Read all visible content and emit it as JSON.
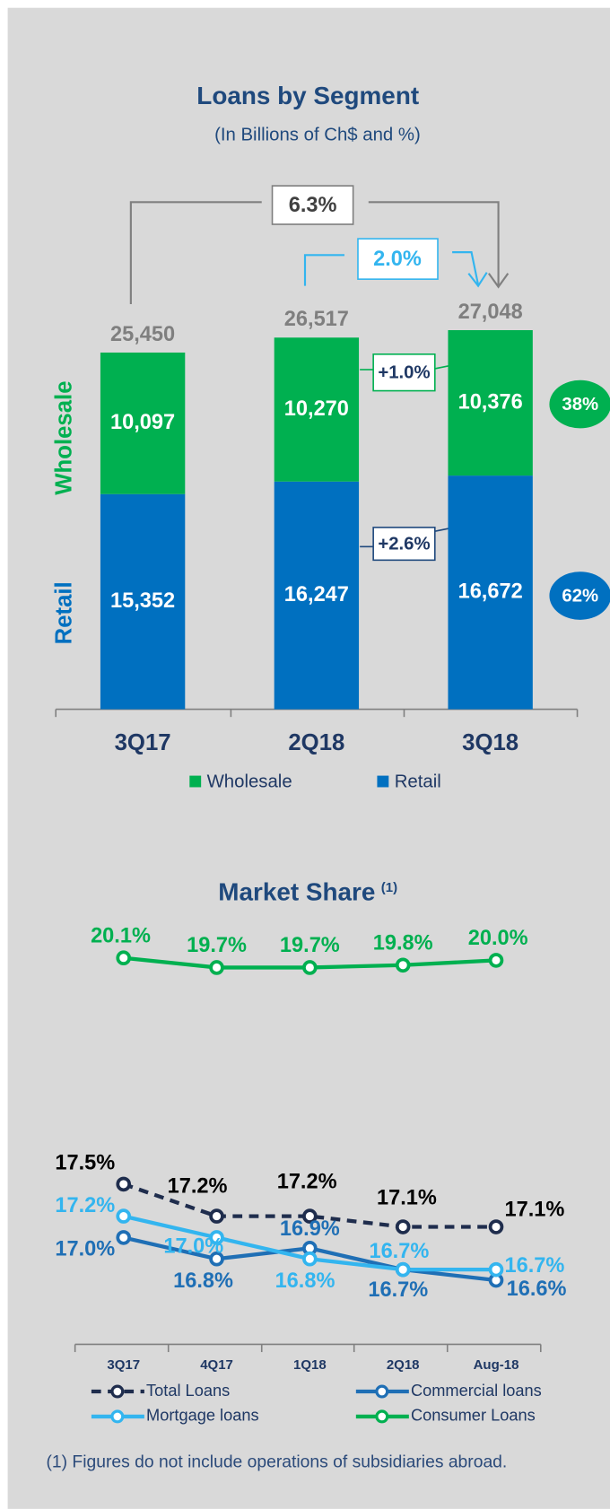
{
  "chart_data": [
    {
      "type": "bar",
      "stacked": true,
      "title": "Loans by Segment",
      "subtitle": "(In Billions of Ch$ and %)",
      "categories": [
        "3Q17",
        "2Q18",
        "3Q18"
      ],
      "series": [
        {
          "name": "Wholesale",
          "color": "#00b050",
          "values": [
            10097,
            10270,
            10376
          ],
          "value_labels": [
            "10,097",
            "10,270",
            "10,376"
          ]
        },
        {
          "name": "Retail",
          "color": "#0070c0",
          "values": [
            15352,
            16247,
            16672
          ],
          "value_labels": [
            "15,352",
            "16,247",
            "16,672"
          ]
        }
      ],
      "totals": [
        25450,
        26517,
        27048
      ],
      "total_labels": [
        "25,450",
        "26,517",
        "27,048"
      ],
      "share_labels": [
        "38%",
        "62%"
      ],
      "annotations": [
        "6.3%",
        "2.0%",
        "+1.0%",
        "+2.6%"
      ],
      "ylim": [
        0,
        30000
      ],
      "legend": "bottom"
    },
    {
      "type": "line",
      "title": "Market Share",
      "title_note": "(1)",
      "categories": [
        "3Q17",
        "4Q17",
        "1Q18",
        "2Q18",
        "Aug-18"
      ],
      "series": [
        {
          "name": "Total Loans",
          "color": "#1f2d4d",
          "label_color": "#000000",
          "dashed": true,
          "values": [
            17.5,
            17.2,
            17.2,
            17.1,
            17.1
          ],
          "value_labels": [
            "17.5%",
            "17.2%",
            "17.2%",
            "17.1%",
            "17.1%"
          ]
        },
        {
          "name": "Commercial loans",
          "color": "#1f6fb5",
          "values": [
            17.0,
            16.8,
            16.9,
            16.7,
            16.6
          ],
          "value_labels": [
            "17.0%",
            "16.8%",
            "16.9%",
            "16.7%",
            "16.6%"
          ]
        },
        {
          "name": "Mortgage loans",
          "color": "#33b5ef",
          "values": [
            17.2,
            17.0,
            16.8,
            16.7,
            16.7
          ],
          "value_labels": [
            "17.2%",
            "17.0%",
            "16.8%",
            "16.7%",
            "16.7%"
          ]
        },
        {
          "name": "Consumer Loans",
          "color": "#00b050",
          "axis": "y2",
          "values": [
            20.1,
            19.7,
            19.7,
            19.8,
            20.0
          ],
          "value_labels": [
            "20.1%",
            "19.7%",
            "19.7%",
            "19.8%",
            "20.0%"
          ]
        }
      ],
      "ylim": [
        16,
        20
      ],
      "y2lim": [
        4,
        21.8
      ],
      "legend": "bottom"
    }
  ],
  "footnote": "(1) Figures do not include operations of subsidiaries abroad."
}
